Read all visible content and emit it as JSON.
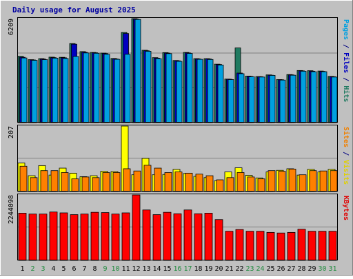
{
  "chart_data": {
    "type": "bar",
    "title": "Daily usage for August 2025",
    "categories": [
      "1",
      "2",
      "3",
      "4",
      "5",
      "6",
      "7",
      "8",
      "9",
      "10",
      "11",
      "12",
      "13",
      "14",
      "15",
      "16",
      "17",
      "18",
      "19",
      "20",
      "21",
      "22",
      "23",
      "24",
      "25",
      "26",
      "27",
      "28",
      "29",
      "30",
      "31"
    ],
    "weekend_days": [
      "2",
      "3",
      "9",
      "10",
      "16",
      "17",
      "23",
      "24",
      "30",
      "31"
    ],
    "panels": [
      {
        "id": "hits_files_pages",
        "ymax_label": "6209",
        "ymax": 6209,
        "label_parts": [
          {
            "text": "Pages",
            "color": "#00a0e0"
          },
          {
            "text": " / ",
            "color": "#000080"
          },
          {
            "text": "Files",
            "color": "#0000c0"
          },
          {
            "text": " / ",
            "color": "#000080"
          },
          {
            "text": "Hits",
            "color": "#1f7a60"
          }
        ],
        "series": [
          {
            "name": "Hits",
            "color": "#1f7a60",
            "values": [
              3960,
              3760,
              3820,
              3910,
              3900,
              4720,
              4240,
              4190,
              4150,
              3830,
              5380,
              6209,
              4320,
              3880,
              4180,
              3710,
              4190,
              3820,
              3820,
              3490,
              2600,
              4460,
              2780,
              2750,
              2850,
              2570,
              2870,
              3110,
              3100,
              3080,
              2760
            ]
          },
          {
            "name": "Files",
            "color": "#0000c0",
            "values": [
              3900,
              3740,
              3790,
              3880,
              3870,
              4680,
              4200,
              4170,
              4120,
              3800,
              5320,
              6180,
              4290,
              3850,
              4150,
              3690,
              4160,
              3800,
              3800,
              3470,
              2590,
              2960,
              2760,
              2740,
              2830,
              2560,
              2850,
              3090,
              3070,
              3060,
              2740
            ]
          },
          {
            "name": "Pages",
            "color": "#00a0e0",
            "values": [
              3860,
              3720,
              3760,
              3850,
              3830,
              3950,
              4160,
              4140,
              4080,
              3780,
              4080,
              6160,
              4260,
              3820,
              4120,
              3660,
              4130,
              3780,
              3770,
              3440,
              2570,
              2920,
              2740,
              2720,
              2820,
              2540,
              2830,
              3070,
              3040,
              3040,
              2720
            ]
          }
        ]
      },
      {
        "id": "visits_sites",
        "ymax_label": "207",
        "ymax": 207,
        "label_parts": [
          {
            "text": "Sites",
            "color": "#f08000"
          },
          {
            "text": " / ",
            "color": "#000080"
          },
          {
            "text": "Visits",
            "color": "#e0d000"
          }
        ],
        "series": [
          {
            "name": "Visits",
            "color": "#ffff00",
            "values": [
              90,
              50,
              82,
              52,
              74,
              58,
              47,
              50,
              64,
              63,
              207,
              53,
              105,
              53,
              54,
              70,
              57,
              48,
              44,
              34,
              62,
              75,
              51,
              43,
              62,
              67,
              72,
              52,
              70,
              62,
              70
            ]
          },
          {
            "name": "Sites",
            "color": "#ff8000",
            "values": [
              80,
              44,
              66,
              66,
              60,
              40,
              46,
              44,
              60,
              60,
              72,
              65,
              83,
              74,
              60,
              62,
              58,
              55,
              50,
              37,
              44,
              60,
              46,
              40,
              66,
              64,
              71,
              53,
              66,
              65,
              66
            ]
          }
        ]
      },
      {
        "id": "kbytes",
        "ymax_label": "2244098",
        "ymax": 2244098,
        "label_parts": [
          {
            "text": "KBytes",
            "color": "#e00000"
          }
        ],
        "series": [
          {
            "name": "KBytes",
            "color": "#ff0000",
            "values": [
              1620000,
              1590000,
              1590000,
              1660000,
              1630000,
              1570000,
              1590000,
              1650000,
              1640000,
              1590000,
              1630000,
              2244098,
              1730000,
              1570000,
              1650000,
              1600000,
              1730000,
              1600000,
              1620000,
              1400000,
              1000000,
              1060000,
              1000000,
              1000000,
              960000,
              940000,
              960000,
              1070000,
              1000000,
              1000000,
              1000000
            ]
          }
        ]
      }
    ]
  }
}
